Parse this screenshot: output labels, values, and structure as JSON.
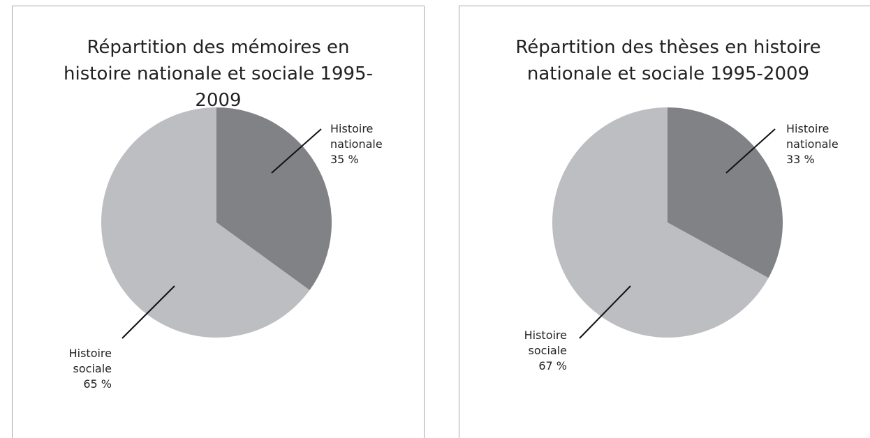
{
  "chart_data": [
    {
      "type": "pie",
      "title": "Répartition des mémoires en histoire nationale et sociale 1995-2009",
      "categories": [
        "Histoire nationale",
        "Histoire sociale"
      ],
      "values": [
        35,
        65
      ],
      "value_labels": [
        "35 %",
        "65 %"
      ],
      "colors": [
        "#818285",
        "#bdbec1"
      ]
    },
    {
      "type": "pie",
      "title": "Répartition des thèses en histoire nationale et sociale 1995-2009",
      "categories": [
        "Histoire nationale",
        "Histoire sociale"
      ],
      "values": [
        33,
        67
      ],
      "value_labels": [
        "33 %",
        "67 %"
      ],
      "colors": [
        "#818285",
        "#bdbec1"
      ]
    }
  ]
}
